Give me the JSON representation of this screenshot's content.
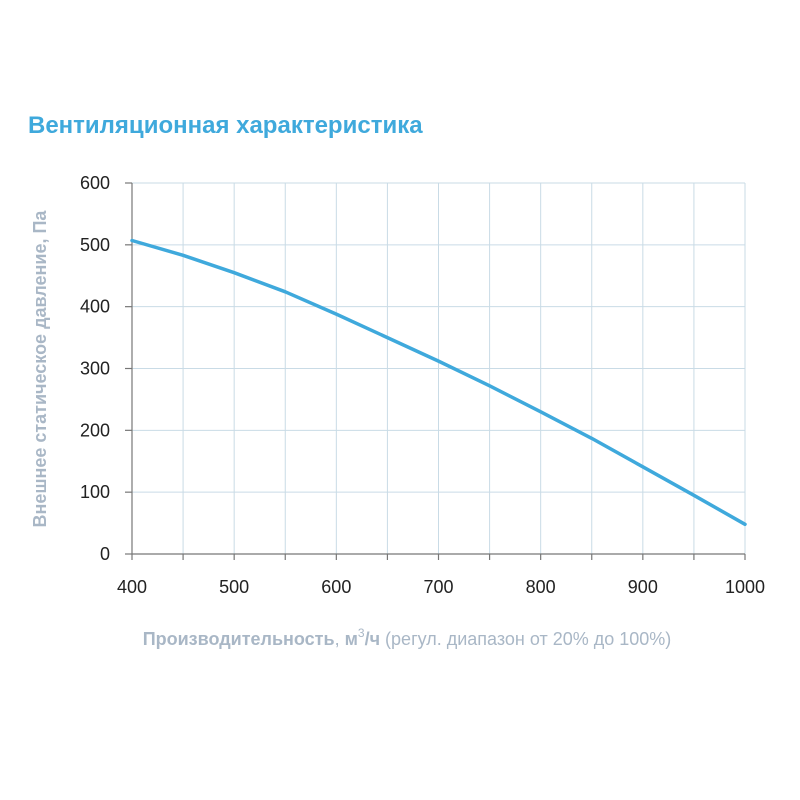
{
  "chart_data": {
    "type": "line",
    "title": "Вентиляционная характеристика",
    "ylabel": "Внешнее статическое давление, Па",
    "xlabel": {
      "main": "Производительность",
      "sep": ", ",
      "unit_prefix": "м",
      "unit_sup": "3",
      "unit_suffix": "/ч",
      "note": " (регул. диапазон от 20% до 100%)"
    },
    "xlim": [
      400,
      1000
    ],
    "ylim": [
      0,
      600
    ],
    "x_ticks": [
      400,
      500,
      600,
      700,
      800,
      900,
      1000
    ],
    "y_ticks": [
      0,
      100,
      200,
      300,
      400,
      500,
      600
    ],
    "grid": true,
    "series": [
      {
        "color": "#3fa9dc",
        "x": [
          400,
          450,
          500,
          550,
          600,
          650,
          700,
          750,
          800,
          850,
          900,
          950,
          1000
        ],
        "y": [
          507,
          483,
          455,
          424,
          388,
          350,
          312,
          272,
          230,
          187,
          141,
          95,
          48
        ]
      }
    ]
  },
  "colors": {
    "accent": "#3fa9dc",
    "grid": "#c9dbe6",
    "axis": "#777777",
    "label_gray": "#a9b7c6"
  }
}
